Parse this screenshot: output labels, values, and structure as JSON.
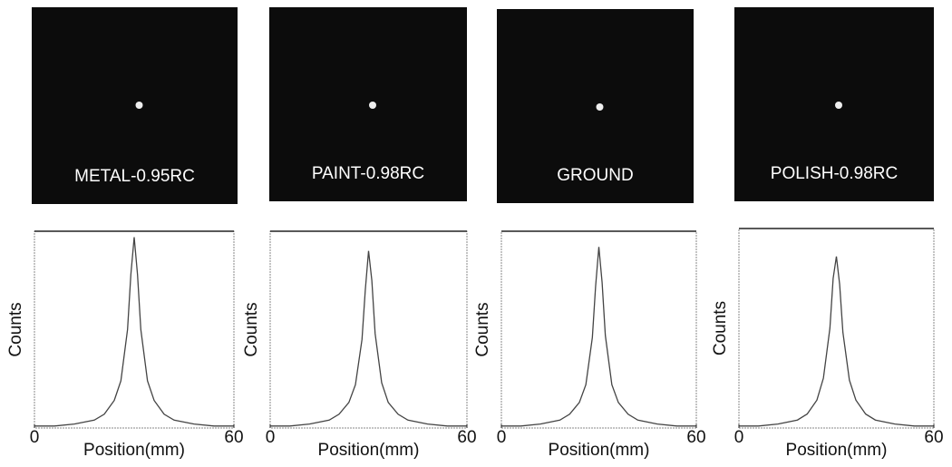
{
  "chart_data": [
    {
      "type": "line",
      "title": "METAL-0.95RC",
      "xlabel": "Position(mm)",
      "ylabel": "Counts",
      "x": [
        0,
        6,
        12,
        18,
        21,
        24,
        26,
        28,
        29,
        30,
        31,
        32,
        34,
        36,
        39,
        42,
        48,
        54,
        60
      ],
      "series": [
        {
          "color": "#444444",
          "values": [
            0.01,
            0.01,
            0.02,
            0.04,
            0.07,
            0.14,
            0.24,
            0.5,
            0.78,
            0.97,
            0.78,
            0.5,
            0.24,
            0.14,
            0.07,
            0.04,
            0.02,
            0.01,
            0.01
          ]
        }
      ],
      "xlim": [
        0,
        60
      ],
      "xticks": [
        0,
        60
      ],
      "ylim": [
        0,
        1
      ]
    },
    {
      "type": "line",
      "title": "PAINT-0.98RC",
      "xlabel": "Position(mm)",
      "ylabel": "Counts",
      "x": [
        0,
        6,
        12,
        18,
        21,
        24,
        26,
        28,
        29,
        30,
        31,
        32,
        34,
        36,
        39,
        42,
        48,
        54,
        60
      ],
      "series": [
        {
          "color": "#444444",
          "values": [
            0.01,
            0.01,
            0.02,
            0.04,
            0.07,
            0.13,
            0.22,
            0.45,
            0.7,
            0.9,
            0.75,
            0.48,
            0.23,
            0.13,
            0.07,
            0.04,
            0.02,
            0.01,
            0.01
          ]
        }
      ],
      "xlim": [
        0,
        60
      ],
      "xticks": [
        0,
        60
      ],
      "ylim": [
        0,
        1
      ]
    },
    {
      "type": "line",
      "title": "GROUND",
      "xlabel": "Position(mm)",
      "ylabel": "Counts",
      "x": [
        0,
        6,
        12,
        18,
        21,
        24,
        26,
        28,
        29,
        30,
        31,
        32,
        34,
        36,
        39,
        42,
        48,
        54,
        60
      ],
      "series": [
        {
          "color": "#444444",
          "values": [
            0.01,
            0.01,
            0.02,
            0.04,
            0.07,
            0.13,
            0.22,
            0.46,
            0.72,
            0.92,
            0.74,
            0.47,
            0.22,
            0.13,
            0.07,
            0.04,
            0.02,
            0.01,
            0.01
          ]
        }
      ],
      "xlim": [
        0,
        60
      ],
      "xticks": [
        0,
        60
      ],
      "ylim": [
        0,
        1
      ]
    },
    {
      "type": "line",
      "title": "POLISH-0.98RC",
      "xlabel": "Position(mm)",
      "ylabel": "Counts",
      "x": [
        0,
        6,
        12,
        18,
        21,
        24,
        26,
        28,
        29,
        30,
        31,
        32,
        34,
        36,
        39,
        42,
        48,
        54,
        60
      ],
      "series": [
        {
          "color": "#444444",
          "values": [
            0.01,
            0.01,
            0.02,
            0.04,
            0.07,
            0.14,
            0.25,
            0.5,
            0.75,
            0.86,
            0.72,
            0.48,
            0.24,
            0.14,
            0.07,
            0.04,
            0.02,
            0.01,
            0.01
          ]
        }
      ],
      "xlim": [
        0,
        60
      ],
      "xticks": [
        0,
        60
      ],
      "ylim": [
        0,
        1
      ]
    }
  ]
}
